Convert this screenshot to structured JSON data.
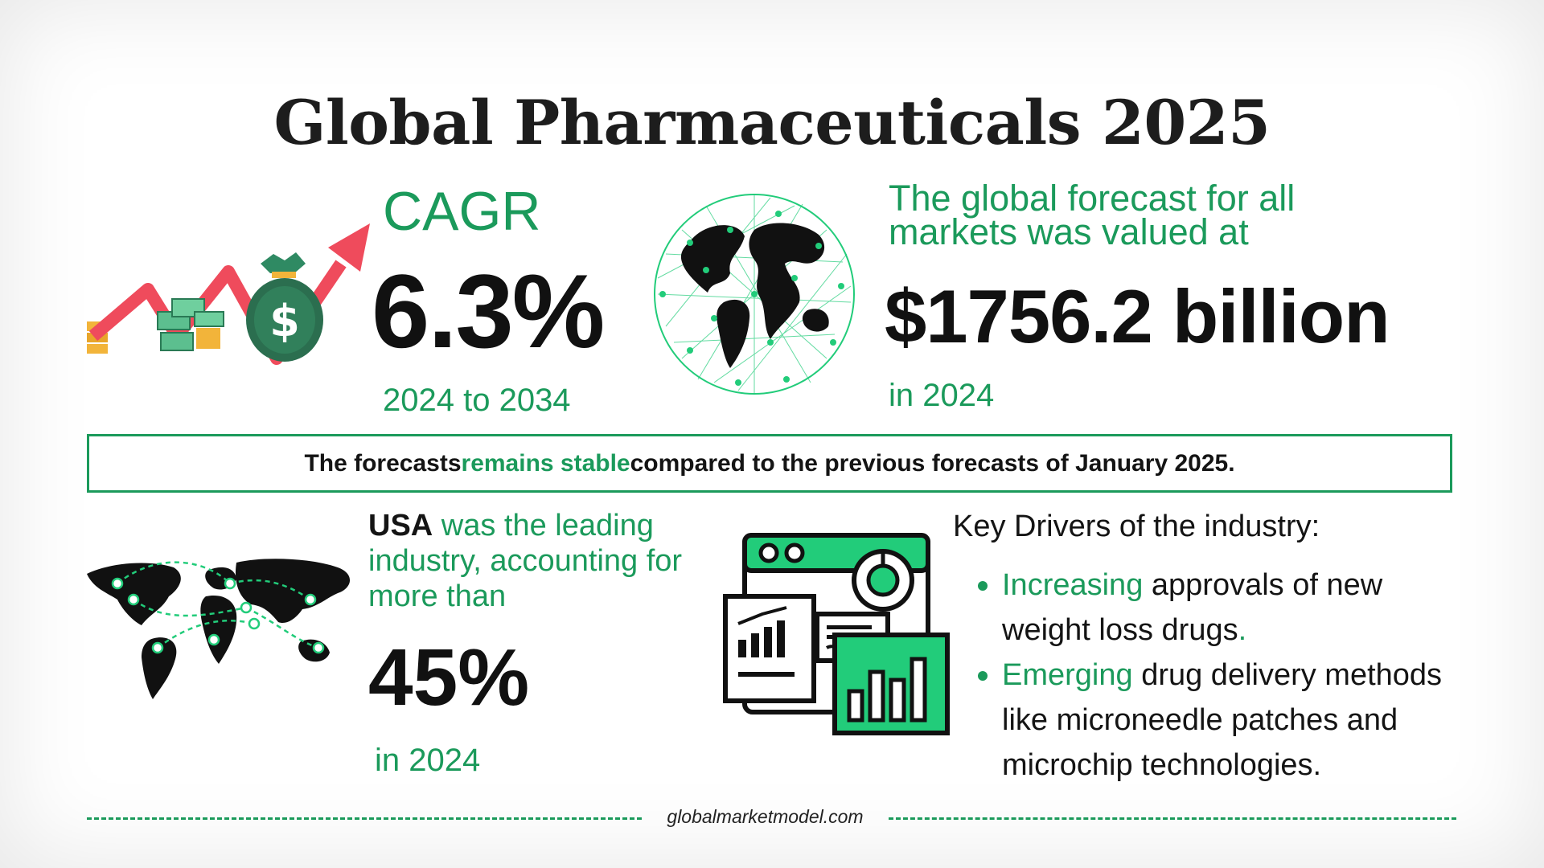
{
  "title": "Global Pharmaceuticals 2025",
  "cagr": {
    "label": "CAGR",
    "value": "6.3%",
    "period": "2024 to 2034",
    "icon": "money-growth-icon"
  },
  "forecast": {
    "text": "The global forecast for all markets was valued at",
    "value": "$1756.2 billion",
    "year": "in 2024",
    "icon": "globe-network-icon"
  },
  "banner": {
    "prefix": "The forecasts ",
    "highlight": "remains stable",
    "suffix": " compared to the previous forecasts of January 2025."
  },
  "usa": {
    "strong": "USA",
    "text": " was the leading industry, accounting for more than",
    "value": "45%",
    "year": "in 2024",
    "icon": "world-map-icon"
  },
  "drivers": {
    "title": "Key Drivers of the industry:",
    "icon": "dashboard-analytics-icon",
    "items": [
      {
        "lead": "Increasing",
        "rest": " approvals of new weight loss drugs",
        "tail": "."
      },
      {
        "lead": "Emerging",
        "rest": " drug delivery methods like microneedle patches and microchip technologies.",
        "tail": ""
      }
    ]
  },
  "footer": {
    "text": "globalmarketmodel.com"
  },
  "colors": {
    "accent": "#1b9a5b",
    "bright_green": "#22cc7a",
    "text": "#141414",
    "arrow": "#ef4b5c",
    "money": "#2f8a63"
  }
}
